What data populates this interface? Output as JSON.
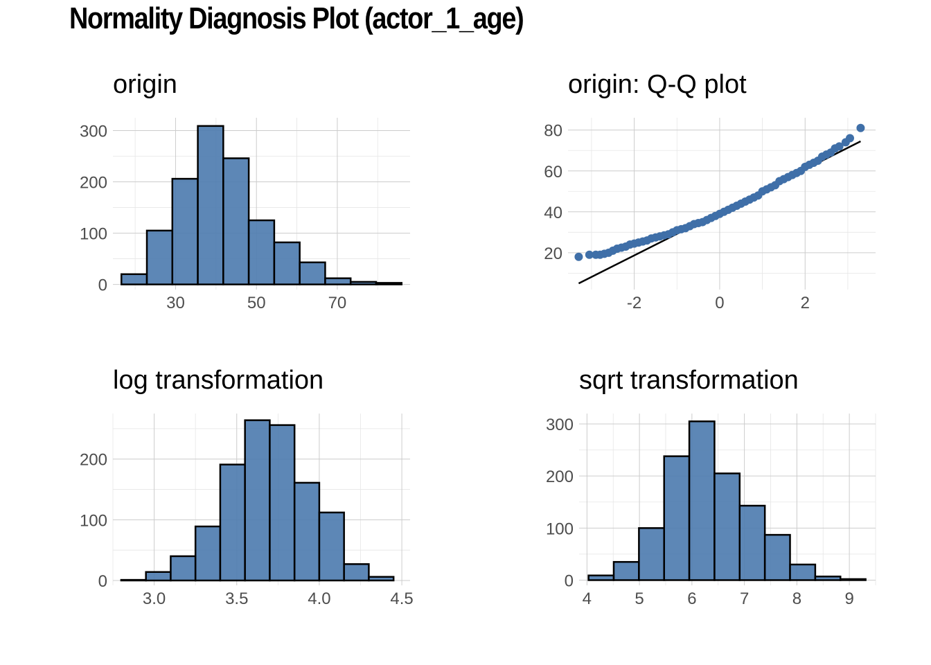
{
  "title": "Normality Diagnosis Plot (actor_1_age)",
  "colors": {
    "bar_fill": "#4f7db0",
    "bar_stroke": "#000000",
    "point": "#3f6fa8",
    "grid": "#cccccc"
  },
  "chart_data": [
    {
      "id": "origin",
      "type": "bar",
      "title": "origin",
      "xlim": [
        14.5,
        88
      ],
      "ylim": [
        -10,
        325
      ],
      "xticks": [
        30,
        50,
        70
      ],
      "yticks": [
        0,
        100,
        200,
        300
      ],
      "bin_edges": [
        16.6,
        22.9,
        29.2,
        35.5,
        41.8,
        48.1,
        54.4,
        60.7,
        67.0,
        73.3,
        79.6,
        85.9
      ],
      "values": [
        20,
        105,
        206,
        309,
        246,
        125,
        82,
        43,
        12,
        5,
        3
      ]
    },
    {
      "id": "qq",
      "type": "scatter",
      "title": "origin: Q-Q plot",
      "xlim": [
        -3.55,
        3.65
      ],
      "ylim": [
        2,
        86
      ],
      "xticks": [
        -2,
        0,
        2
      ],
      "yticks": [
        20,
        40,
        60,
        80
      ],
      "x": [
        -3.3,
        -3.05,
        -2.9,
        -2.8,
        -2.7,
        -2.6,
        -2.5,
        -2.4,
        -2.3,
        -2.2,
        -2.1,
        -2.0,
        -1.9,
        -1.8,
        -1.7,
        -1.6,
        -1.5,
        -1.4,
        -1.3,
        -1.2,
        -1.1,
        -1.0,
        -0.9,
        -0.8,
        -0.7,
        -0.6,
        -0.5,
        -0.4,
        -0.3,
        -0.2,
        -0.1,
        0.0,
        0.1,
        0.2,
        0.3,
        0.4,
        0.5,
        0.6,
        0.7,
        0.8,
        0.9,
        1.0,
        1.1,
        1.2,
        1.3,
        1.4,
        1.5,
        1.6,
        1.7,
        1.8,
        1.9,
        2.0,
        2.1,
        2.2,
        2.3,
        2.4,
        2.5,
        2.6,
        2.7,
        2.8,
        2.95,
        3.05,
        3.3
      ],
      "y": [
        18,
        19,
        19,
        19,
        19.5,
        20,
        21,
        22,
        22.5,
        23,
        24,
        24.5,
        25,
        25.5,
        26,
        27,
        27.5,
        28,
        28.5,
        29,
        30,
        31,
        31.5,
        32,
        33,
        34,
        34.5,
        35,
        36,
        37,
        38,
        39,
        40,
        41,
        42,
        43,
        44,
        45,
        46,
        47,
        48,
        50,
        51,
        52,
        53,
        55,
        56,
        57,
        58,
        59,
        60,
        62,
        63,
        64,
        65,
        67,
        68,
        69,
        71,
        72,
        74,
        76,
        81
      ],
      "line": {
        "x": [
          -3.3,
          3.3
        ],
        "y": [
          5,
          74.5
        ]
      }
    },
    {
      "id": "log",
      "type": "bar",
      "title": "log transformation",
      "xlim": [
        2.75,
        4.55
      ],
      "ylim": [
        -8,
        275
      ],
      "xticks": [
        3.0,
        3.5,
        4.0,
        4.5
      ],
      "xtick_labels": [
        "3.0",
        "3.5",
        "4.0",
        "4.5"
      ],
      "yticks": [
        0,
        100,
        200
      ],
      "bin_edges": [
        2.8,
        2.95,
        3.1,
        3.25,
        3.4,
        3.55,
        3.7,
        3.85,
        4.0,
        4.15,
        4.3,
        4.45
      ],
      "values": [
        1,
        14,
        40,
        89,
        191,
        264,
        256,
        161,
        112,
        27,
        6
      ]
    },
    {
      "id": "sqrt",
      "type": "bar",
      "title": "sqrt transformation",
      "xlim": [
        3.85,
        9.5
      ],
      "ylim": [
        -10,
        320
      ],
      "xticks": [
        4,
        5,
        6,
        7,
        8,
        9
      ],
      "yticks": [
        0,
        100,
        200,
        300
      ],
      "bin_edges": [
        4.03,
        4.51,
        4.99,
        5.47,
        5.95,
        6.43,
        6.91,
        7.39,
        7.87,
        8.35,
        8.83,
        9.31
      ],
      "values": [
        9,
        35,
        100,
        238,
        305,
        205,
        143,
        87,
        30,
        7,
        2
      ]
    }
  ]
}
